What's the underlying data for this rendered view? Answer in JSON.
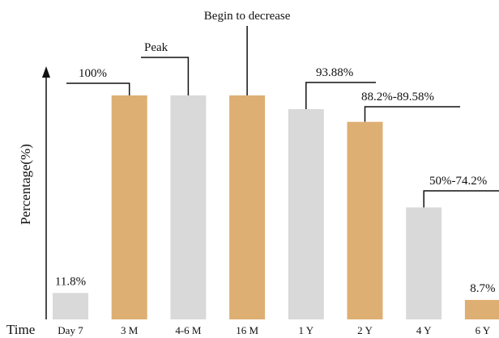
{
  "chart_data": {
    "type": "bar",
    "title": "",
    "xlabel": "Time",
    "ylabel": "Percentage(%)",
    "ylim": [
      0,
      100
    ],
    "grid": false,
    "categories": [
      "Day 7",
      "3 M",
      "4-6 M",
      "16 M",
      "1 Y",
      "2 Y",
      "4 Y",
      "6 Y"
    ],
    "values": [
      11.8,
      100,
      100,
      100,
      93.88,
      88.2,
      50,
      8.7
    ],
    "bar_colors": [
      "#d9d9d9",
      "#deaf73",
      "#d9d9d9",
      "#deaf73",
      "#d9d9d9",
      "#deaf73",
      "#d9d9d9",
      "#deaf73"
    ],
    "annotations": [
      {
        "text": "11.8%",
        "category": "Day 7",
        "kind": "label"
      },
      {
        "text": "100%",
        "category": "3 M",
        "kind": "bracket"
      },
      {
        "text": "Peak",
        "category": "4-6 M",
        "kind": "bracket"
      },
      {
        "text": "Begin to decrease",
        "category": "16 M",
        "kind": "bracket"
      },
      {
        "text": "93.88%",
        "category": "1 Y",
        "kind": "bracket"
      },
      {
        "text": "88.2%-89.58%",
        "category": "2 Y",
        "kind": "bracket"
      },
      {
        "text": "50%-74.2%",
        "category": "4 Y",
        "kind": "bracket"
      },
      {
        "text": "8.7%",
        "category": "6 Y",
        "kind": "label"
      }
    ]
  }
}
